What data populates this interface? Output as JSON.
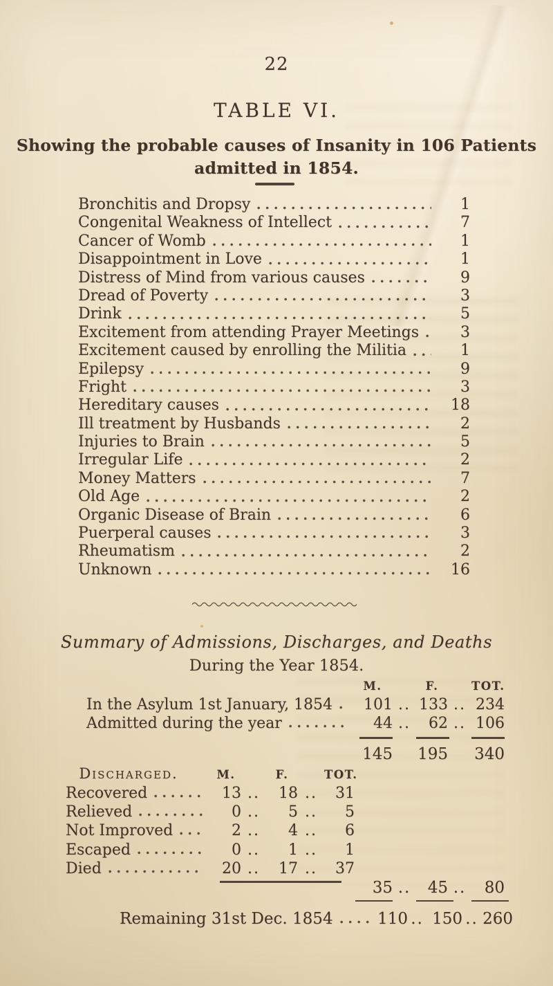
{
  "page": {
    "number": "22",
    "table_title": "TABLE VI.",
    "subtitle_line1": "Showing the probable causes of Insanity in 106 Patients",
    "subtitle_line2": "admitted in 1854."
  },
  "causes": [
    {
      "label": "Bronchitis and Dropsy",
      "value": 1
    },
    {
      "label": "Congenital Weakness of Intellect",
      "value": 7
    },
    {
      "label": "Cancer of Womb",
      "value": 1
    },
    {
      "label": "Disappointment in Love",
      "value": 1
    },
    {
      "label": "Distress of Mind from various causes",
      "value": 9
    },
    {
      "label": "Dread of Poverty",
      "value": 3
    },
    {
      "label": "Drink",
      "value": 5
    },
    {
      "label": "Excitement from attending Prayer Meetings",
      "value": 3
    },
    {
      "label": "Excitement caused by enrolling the Militia",
      "value": 1
    },
    {
      "label": "Epilepsy",
      "value": 9
    },
    {
      "label": "Fright",
      "value": 3
    },
    {
      "label": "Hereditary causes",
      "value": 18
    },
    {
      "label": "Ill treatment by Husbands",
      "value": 2
    },
    {
      "label": "Injuries to Brain",
      "value": 5
    },
    {
      "label": "Irregular Life",
      "value": 2
    },
    {
      "label": "Money Matters",
      "value": 7
    },
    {
      "label": "Old Age",
      "value": 2
    },
    {
      "label": "Organic Disease of Brain",
      "value": 6
    },
    {
      "label": "Puerperal causes",
      "value": 3
    },
    {
      "label": "Rheumatism",
      "value": 2
    },
    {
      "label": "Unknown",
      "value": 16
    }
  ],
  "summary": {
    "heading": "Summary of Admissions, Discharges, and Deaths",
    "subheading": "During the Year 1854.",
    "sep": "..",
    "col_headers": {
      "m": "M.",
      "f": "F.",
      "tot": "TOT."
    },
    "admissions": {
      "rows": [
        {
          "label": "In the Asylum 1st January, 1854",
          "m": 101,
          "f": 133,
          "tot": 234
        },
        {
          "label": "Admitted during the year",
          "m": 44,
          "f": 62,
          "tot": 106
        }
      ],
      "totals": {
        "m": 145,
        "f": 195,
        "tot": 340
      }
    },
    "discharged": {
      "heading": "Discharged.",
      "col_headers": {
        "m": "M.",
        "f": "F.",
        "tot": "TOT."
      },
      "rows": [
        {
          "label": "Recovered",
          "m": 13,
          "f": 18,
          "tot": 31
        },
        {
          "label": "Relieved",
          "m": 0,
          "f": 5,
          "tot": 5
        },
        {
          "label": "Not Improved",
          "m": 2,
          "f": 4,
          "tot": 6
        },
        {
          "label": "Escaped",
          "m": 0,
          "f": 1,
          "tot": 1
        },
        {
          "label": "Died",
          "m": 20,
          "f": 17,
          "tot": 37
        }
      ],
      "totals": {
        "m": 35,
        "f": 45,
        "tot": 80
      }
    },
    "remaining": {
      "label": "Remaining 31st Dec. 1854",
      "m": 110,
      "f": 150,
      "tot": 260
    }
  }
}
